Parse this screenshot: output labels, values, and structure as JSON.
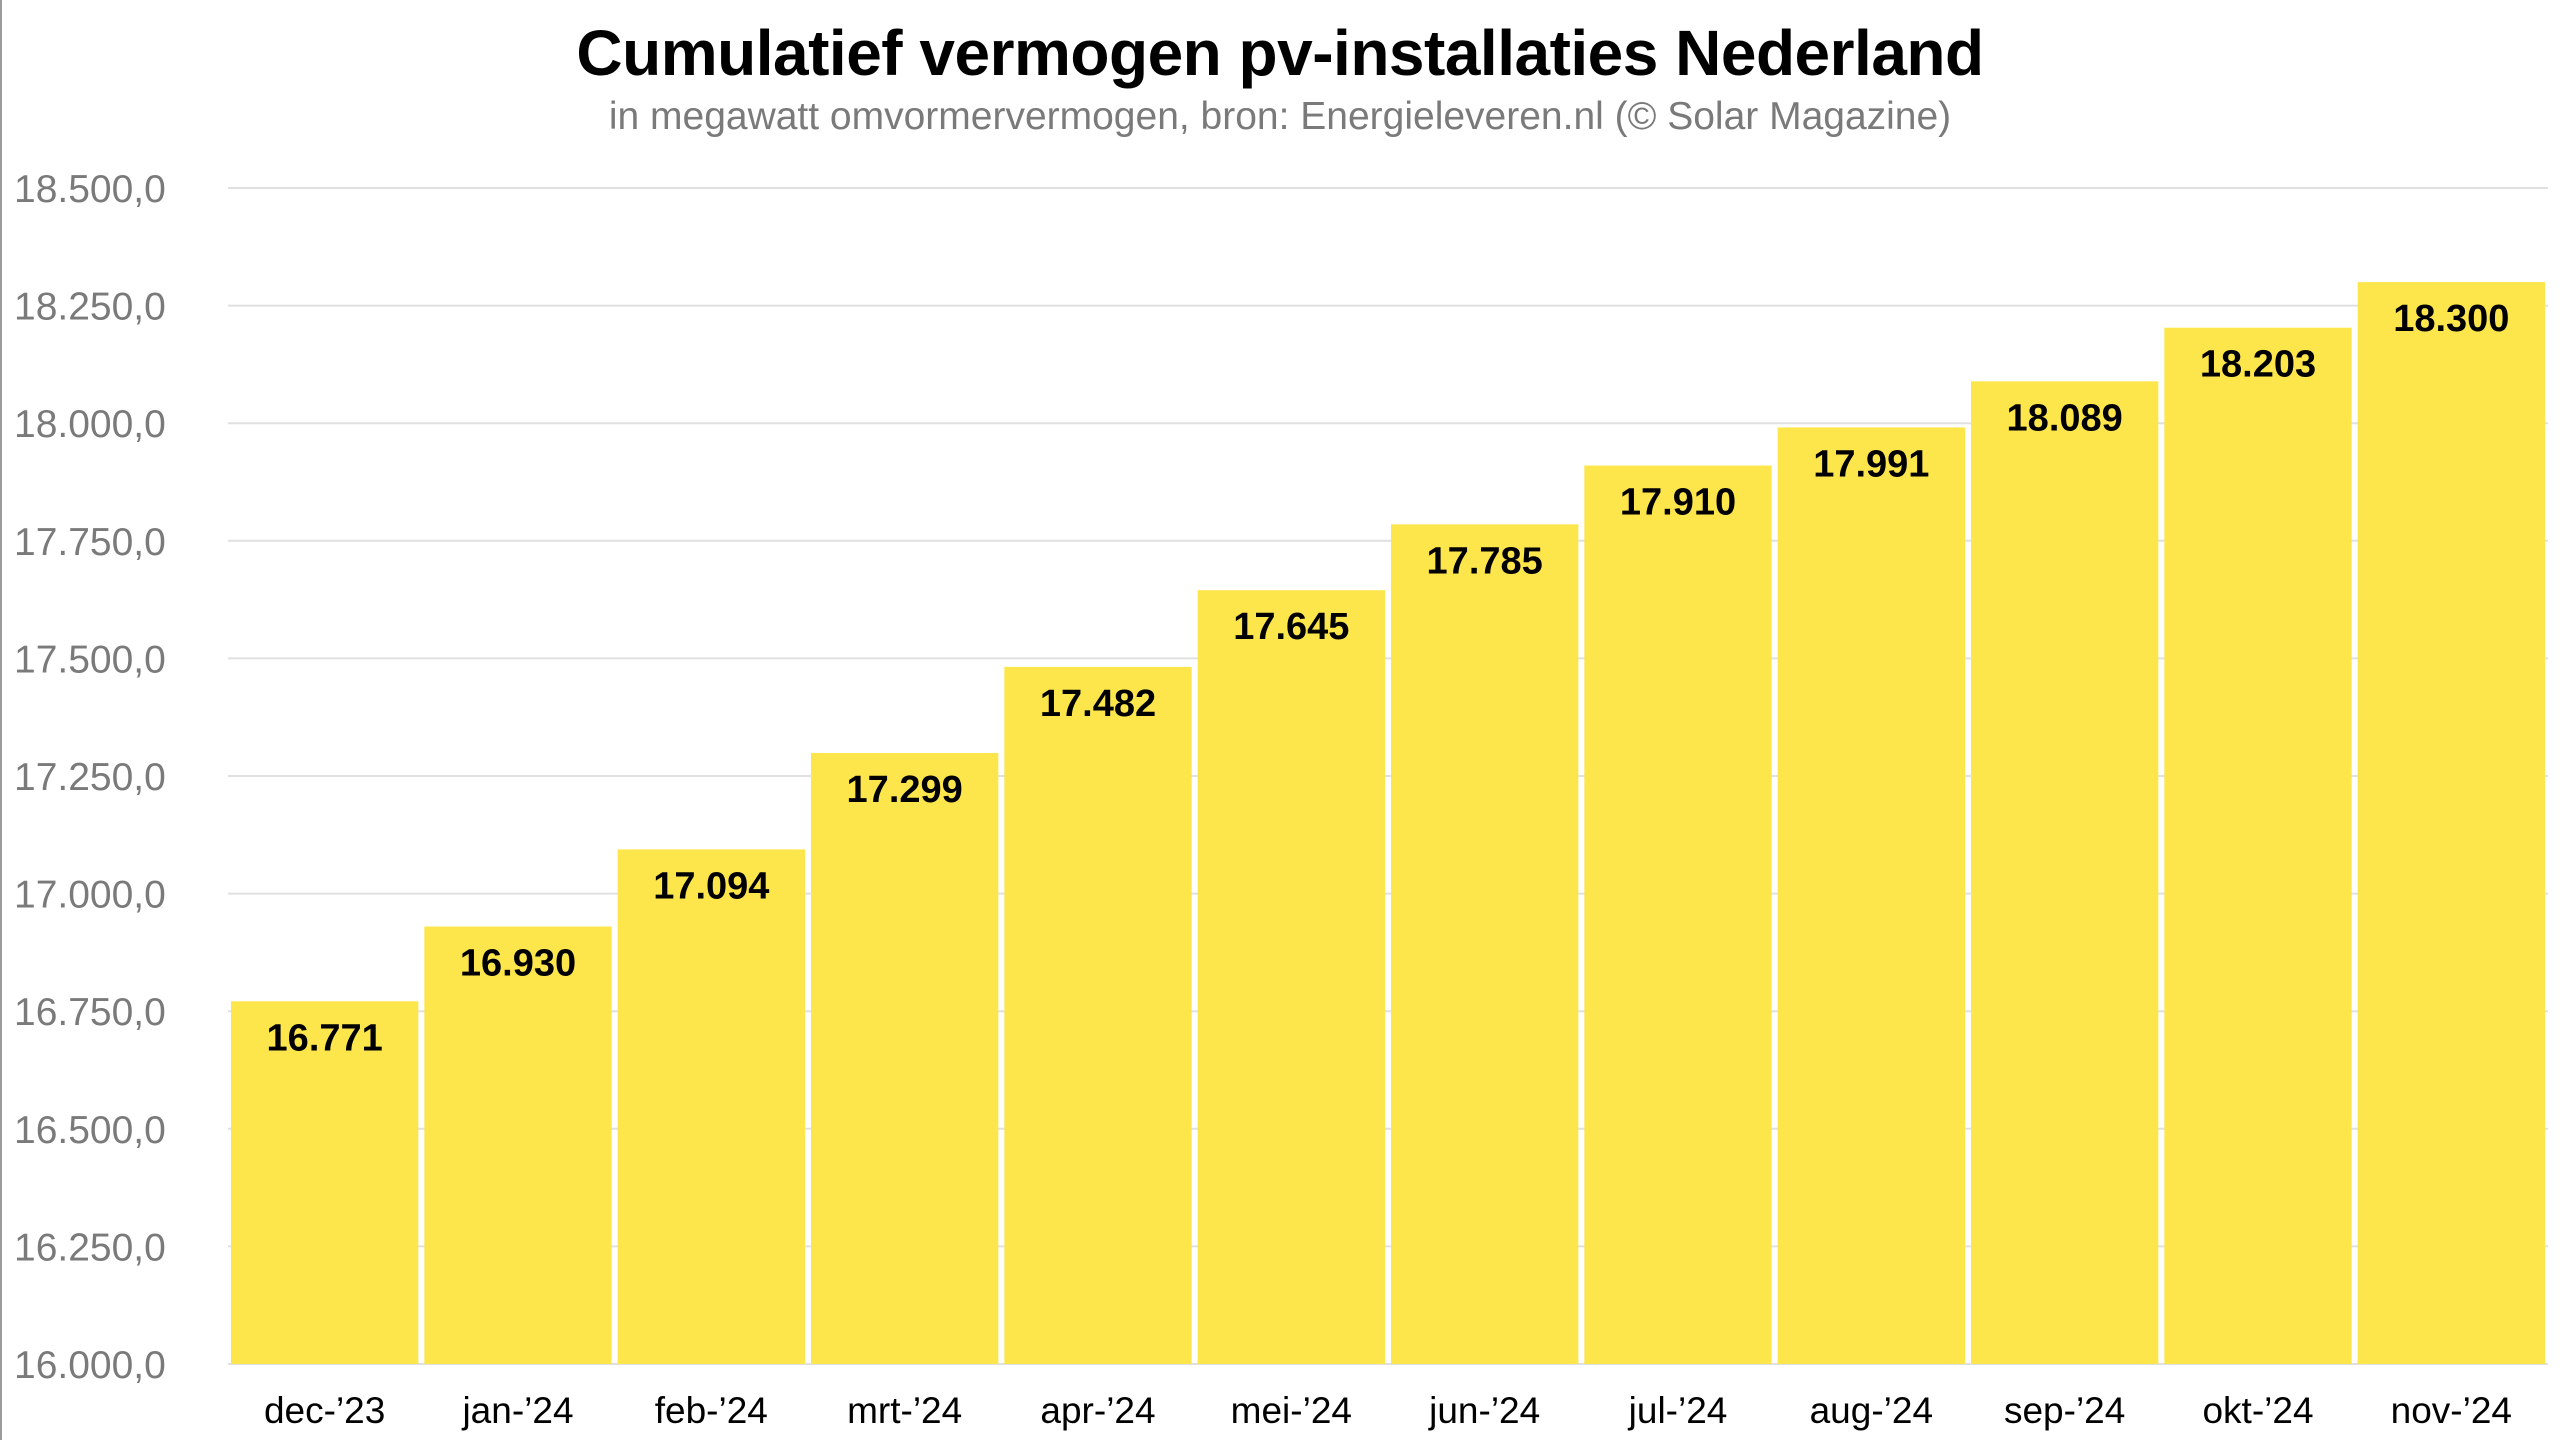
{
  "chart_data": {
    "type": "bar",
    "title": "Cumulatief vermogen pv-installaties Nederland",
    "subtitle": "in megawatt omvormervermogen, bron: Energieleveren.nl (© Solar Magazine)",
    "categories": [
      "dec-’23",
      "jan-’24",
      "feb-’24",
      "mrt-’24",
      "apr-’24",
      "mei-’24",
      "jun-’24",
      "jul-’24",
      "aug-’24",
      "sep-’24",
      "okt-’24",
      "nov-’24"
    ],
    "values": [
      16771,
      16930,
      17094,
      17299,
      17482,
      17645,
      17785,
      17910,
      17991,
      18089,
      18203,
      18300
    ],
    "value_labels": [
      "16.771",
      "16.930",
      "17.094",
      "17.299",
      "17.482",
      "17.645",
      "17.785",
      "17.910",
      "17.991",
      "18.089",
      "18.203",
      "18.300"
    ],
    "y_ticks": [
      16000,
      16250,
      16500,
      16750,
      17000,
      17250,
      17500,
      17750,
      18000,
      18250,
      18500
    ],
    "y_tick_labels": [
      "16.000,0",
      "16.250,0",
      "16.500,0",
      "16.750,0",
      "17.000,0",
      "17.250,0",
      "17.500,0",
      "17.750,0",
      "18.000,0",
      "18.250,0",
      "18.500,0"
    ],
    "ylim": [
      16000,
      18500
    ],
    "xlabel": "",
    "ylabel": "",
    "grid": true,
    "legend": "none",
    "colors": {
      "bar": "#fde64b",
      "grid": "#e0e0e0",
      "axis_text": "#7a7a7a",
      "label_text": "#000000"
    }
  }
}
